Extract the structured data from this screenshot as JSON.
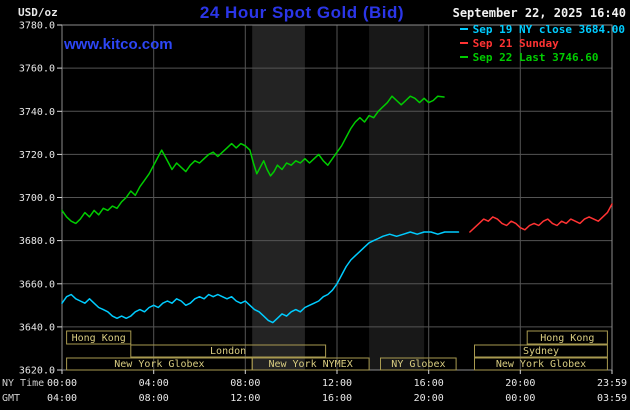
{
  "watermark": "www.kitco.com",
  "chart_data": {
    "type": "line",
    "title": "24 Hour Spot Gold (Bid)",
    "datetime": "September 22, 2025 16:40",
    "ylabel": "USD/oz",
    "ylim": [
      3620,
      3780
    ],
    "y_ticks": [
      3780,
      3760,
      3740,
      3720,
      3700,
      3680,
      3660,
      3640,
      3620
    ],
    "x_ticks": [
      {
        "h": 0,
        "ny": "00:00",
        "gmt": "04:00"
      },
      {
        "h": 4,
        "ny": "04:00",
        "gmt": "08:00"
      },
      {
        "h": 8,
        "ny": "08:00",
        "gmt": "12:00"
      },
      {
        "h": 12,
        "ny": "12:00",
        "gmt": "16:00"
      },
      {
        "h": 16,
        "ny": "16:00",
        "gmt": "20:00"
      },
      {
        "h": 20,
        "ny": "20:00",
        "gmt": "00:00"
      },
      {
        "h": 24,
        "ny": "23:59",
        "gmt": "03:59"
      }
    ],
    "x_axis_rows": [
      "NY Time",
      "GMT"
    ],
    "legend": [
      {
        "label": "Sep 19 NY close 3684.00",
        "color": "#00ccff"
      },
      {
        "label": "Sep 21 Sunday",
        "color": "#ff3333"
      },
      {
        "label": "Sep 22 Last 3746.60",
        "color": "#00cc00"
      }
    ],
    "bands": [
      {
        "from": 8.3,
        "to": 10.6,
        "color": "#232323"
      },
      {
        "from": 13.4,
        "to": 15.8,
        "color": "#181818"
      }
    ],
    "sessions": [
      {
        "boxes": [
          {
            "from": 0.2,
            "to": 3.0,
            "label": "Hong Kong"
          },
          {
            "from": 20.3,
            "to": 23.8,
            "label": "Hong Kong"
          }
        ]
      },
      {
        "boxes": [
          {
            "from": 3.0,
            "to": 11.5,
            "label": "London"
          },
          {
            "from": 18.0,
            "to": 23.8,
            "label": "Sydney"
          }
        ]
      },
      {
        "boxes": [
          {
            "from": 0.2,
            "to": 8.3,
            "label": "New York Globex"
          },
          {
            "from": 8.3,
            "to": 13.4,
            "label": "New York NYMEX"
          },
          {
            "from": 13.9,
            "to": 17.2,
            "label": "NY Globex"
          },
          {
            "from": 18.0,
            "to": 23.8,
            "label": "New York Globex"
          }
        ]
      }
    ],
    "series": [
      {
        "id": "sep19-ny-close",
        "name": "Sep 19 NY close",
        "color": "#00ccff",
        "points": [
          [
            0,
            3651
          ],
          [
            0.2,
            3654
          ],
          [
            0.4,
            3655
          ],
          [
            0.6,
            3653
          ],
          [
            0.8,
            3652
          ],
          [
            1,
            3651
          ],
          [
            1.2,
            3653
          ],
          [
            1.4,
            3651
          ],
          [
            1.6,
            3649
          ],
          [
            1.8,
            3648
          ],
          [
            2,
            3647
          ],
          [
            2.2,
            3645
          ],
          [
            2.4,
            3644
          ],
          [
            2.6,
            3645
          ],
          [
            2.8,
            3644
          ],
          [
            3,
            3645
          ],
          [
            3.2,
            3647
          ],
          [
            3.4,
            3648
          ],
          [
            3.6,
            3647
          ],
          [
            3.8,
            3649
          ],
          [
            4,
            3650
          ],
          [
            4.2,
            3649
          ],
          [
            4.4,
            3651
          ],
          [
            4.6,
            3652
          ],
          [
            4.8,
            3651
          ],
          [
            5,
            3653
          ],
          [
            5.2,
            3652
          ],
          [
            5.4,
            3650
          ],
          [
            5.6,
            3651
          ],
          [
            5.8,
            3653
          ],
          [
            6,
            3654
          ],
          [
            6.2,
            3653
          ],
          [
            6.4,
            3655
          ],
          [
            6.6,
            3654
          ],
          [
            6.8,
            3655
          ],
          [
            7,
            3654
          ],
          [
            7.2,
            3653
          ],
          [
            7.4,
            3654
          ],
          [
            7.6,
            3652
          ],
          [
            7.8,
            3651
          ],
          [
            8,
            3652
          ],
          [
            8.2,
            3650
          ],
          [
            8.4,
            3648
          ],
          [
            8.6,
            3647
          ],
          [
            8.8,
            3645
          ],
          [
            9,
            3643
          ],
          [
            9.2,
            3642
          ],
          [
            9.4,
            3644
          ],
          [
            9.6,
            3646
          ],
          [
            9.8,
            3645
          ],
          [
            10,
            3647
          ],
          [
            10.2,
            3648
          ],
          [
            10.4,
            3647
          ],
          [
            10.6,
            3649
          ],
          [
            10.8,
            3650
          ],
          [
            11,
            3651
          ],
          [
            11.2,
            3652
          ],
          [
            11.4,
            3654
          ],
          [
            11.6,
            3655
          ],
          [
            11.8,
            3657
          ],
          [
            12,
            3660
          ],
          [
            12.2,
            3664
          ],
          [
            12.4,
            3668
          ],
          [
            12.6,
            3671
          ],
          [
            12.8,
            3673
          ],
          [
            13,
            3675
          ],
          [
            13.2,
            3677
          ],
          [
            13.4,
            3679
          ],
          [
            13.6,
            3680
          ],
          [
            13.8,
            3681
          ],
          [
            14,
            3682
          ],
          [
            14.3,
            3683
          ],
          [
            14.6,
            3682
          ],
          [
            14.9,
            3683
          ],
          [
            15.2,
            3684
          ],
          [
            15.5,
            3683
          ],
          [
            15.8,
            3684
          ],
          [
            16.1,
            3684
          ],
          [
            16.4,
            3683
          ],
          [
            16.7,
            3684
          ],
          [
            17,
            3684
          ],
          [
            17.3,
            3684
          ]
        ]
      },
      {
        "id": "sep21-sunday",
        "name": "Sep 21 Sunday",
        "color": "#ff3333",
        "points": [
          [
            17.8,
            3684
          ],
          [
            18,
            3686
          ],
          [
            18.2,
            3688
          ],
          [
            18.4,
            3690
          ],
          [
            18.6,
            3689
          ],
          [
            18.8,
            3691
          ],
          [
            19,
            3690
          ],
          [
            19.2,
            3688
          ],
          [
            19.4,
            3687
          ],
          [
            19.6,
            3689
          ],
          [
            19.8,
            3688
          ],
          [
            20,
            3686
          ],
          [
            20.2,
            3685
          ],
          [
            20.4,
            3687
          ],
          [
            20.6,
            3688
          ],
          [
            20.8,
            3687
          ],
          [
            21,
            3689
          ],
          [
            21.2,
            3690
          ],
          [
            21.4,
            3688
          ],
          [
            21.6,
            3687
          ],
          [
            21.8,
            3689
          ],
          [
            22,
            3688
          ],
          [
            22.2,
            3690
          ],
          [
            22.4,
            3689
          ],
          [
            22.6,
            3688
          ],
          [
            22.8,
            3690
          ],
          [
            23,
            3691
          ],
          [
            23.2,
            3690
          ],
          [
            23.4,
            3689
          ],
          [
            23.6,
            3691
          ],
          [
            23.8,
            3693
          ],
          [
            24,
            3697
          ]
        ]
      },
      {
        "id": "sep22-last",
        "name": "Sep 22",
        "color": "#00cc00",
        "points": [
          [
            0,
            3694
          ],
          [
            0.2,
            3691
          ],
          [
            0.4,
            3689
          ],
          [
            0.6,
            3688
          ],
          [
            0.8,
            3690
          ],
          [
            1,
            3693
          ],
          [
            1.2,
            3691
          ],
          [
            1.4,
            3694
          ],
          [
            1.6,
            3692
          ],
          [
            1.8,
            3695
          ],
          [
            2,
            3694
          ],
          [
            2.2,
            3696
          ],
          [
            2.4,
            3695
          ],
          [
            2.6,
            3698
          ],
          [
            2.8,
            3700
          ],
          [
            3,
            3703
          ],
          [
            3.2,
            3701
          ],
          [
            3.4,
            3705
          ],
          [
            3.6,
            3708
          ],
          [
            3.8,
            3711
          ],
          [
            4,
            3715
          ],
          [
            4.2,
            3719
          ],
          [
            4.35,
            3722
          ],
          [
            4.5,
            3719
          ],
          [
            4.65,
            3716
          ],
          [
            4.8,
            3713
          ],
          [
            5,
            3716
          ],
          [
            5.2,
            3714
          ],
          [
            5.4,
            3712
          ],
          [
            5.6,
            3715
          ],
          [
            5.8,
            3717
          ],
          [
            6,
            3716
          ],
          [
            6.2,
            3718
          ],
          [
            6.4,
            3720
          ],
          [
            6.6,
            3721
          ],
          [
            6.8,
            3719
          ],
          [
            7,
            3721
          ],
          [
            7.2,
            3723
          ],
          [
            7.4,
            3725
          ],
          [
            7.6,
            3723
          ],
          [
            7.8,
            3725
          ],
          [
            8,
            3724
          ],
          [
            8.2,
            3722
          ],
          [
            8.35,
            3716
          ],
          [
            8.5,
            3711
          ],
          [
            8.65,
            3714
          ],
          [
            8.8,
            3717
          ],
          [
            8.95,
            3713
          ],
          [
            9.1,
            3710
          ],
          [
            9.25,
            3712
          ],
          [
            9.4,
            3715
          ],
          [
            9.6,
            3713
          ],
          [
            9.8,
            3716
          ],
          [
            10,
            3715
          ],
          [
            10.2,
            3717
          ],
          [
            10.4,
            3716
          ],
          [
            10.6,
            3718
          ],
          [
            10.8,
            3716
          ],
          [
            11,
            3718
          ],
          [
            11.2,
            3720
          ],
          [
            11.4,
            3717
          ],
          [
            11.6,
            3715
          ],
          [
            11.8,
            3718
          ],
          [
            12,
            3721
          ],
          [
            12.2,
            3724
          ],
          [
            12.4,
            3728
          ],
          [
            12.6,
            3732
          ],
          [
            12.8,
            3735
          ],
          [
            13,
            3737
          ],
          [
            13.2,
            3735
          ],
          [
            13.4,
            3738
          ],
          [
            13.6,
            3737
          ],
          [
            13.8,
            3740
          ],
          [
            14,
            3742
          ],
          [
            14.2,
            3744
          ],
          [
            14.4,
            3747
          ],
          [
            14.6,
            3745
          ],
          [
            14.8,
            3743
          ],
          [
            15,
            3745
          ],
          [
            15.2,
            3747
          ],
          [
            15.4,
            3746
          ],
          [
            15.6,
            3744
          ],
          [
            15.8,
            3746
          ],
          [
            16,
            3744
          ],
          [
            16.2,
            3745
          ],
          [
            16.4,
            3747
          ],
          [
            16.67,
            3746.6
          ]
        ]
      }
    ],
    "colors": {
      "background": "#000000",
      "grid": "#545454",
      "border": "#8c8c8c",
      "tick": "#d8d8d8",
      "tick_text": "#e8e8e8",
      "axis_label": "#cfcfcf",
      "session_border": "#a89a50",
      "session_text": "#d8cc80",
      "title": "#2b36e8",
      "watermark": "#2d46f5",
      "date": "#f2f2f2"
    }
  }
}
